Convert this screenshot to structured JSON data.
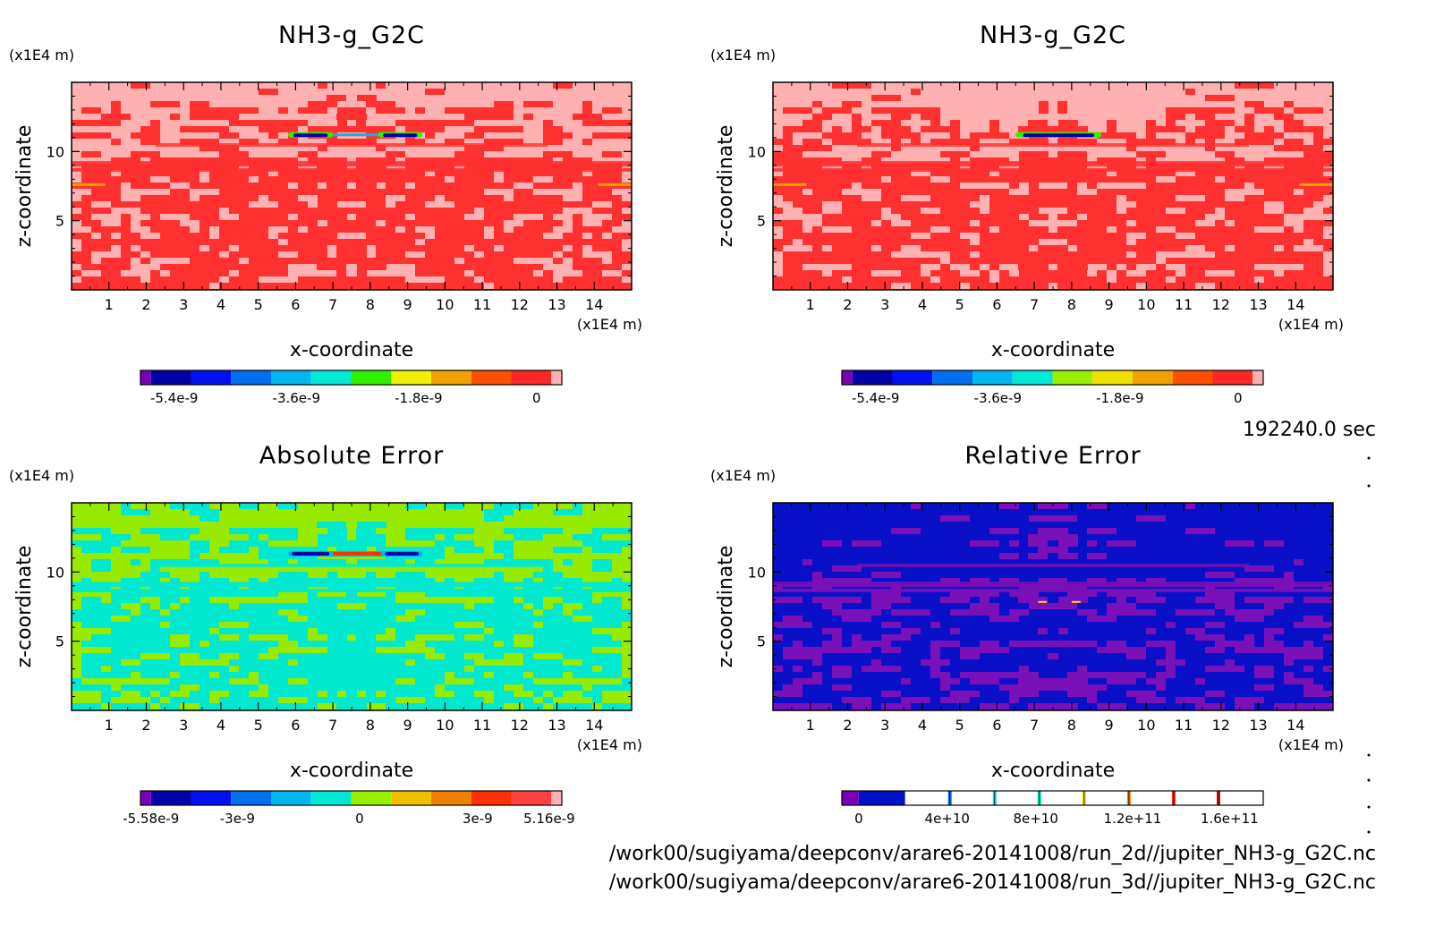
{
  "time_label": "192240.0 sec",
  "files": [
    "/work00/sugiyama/deepconv/arare6-20141008/run_2d//jupiter_NH3-g_G2C.nc",
    "/work00/sugiyama/deepconv/arare6-20141008/run_3d//jupiter_NH3-g_G2C.nc"
  ],
  "chart_data": [
    {
      "type": "heatmap",
      "title": "NH3-g_G2C",
      "xlabel": "x-coordinate",
      "ylabel": "z-coordinate",
      "x_unit": "(x1E4 m)",
      "y_unit": "(x1E4 m)",
      "xlim": [
        0,
        15
      ],
      "ylim": [
        0,
        15
      ],
      "x_ticks": [
        "1",
        "2",
        "3",
        "4",
        "5",
        "6",
        "7",
        "8",
        "9",
        "10",
        "11",
        "12",
        "13",
        "14"
      ],
      "y_ticks": [
        "5",
        "10"
      ],
      "colorbar": {
        "colors": [
          "#7a00b8",
          "#0000a8",
          "#0010f0",
          "#0070f0",
          "#00b8f0",
          "#00e8d8",
          "#30f000",
          "#f0f000",
          "#f0a000",
          "#ff5000",
          "#ff2828",
          "#ffb0b0"
        ],
        "labels": [
          "-5.4e-9",
          "-3.6e-9",
          "-1.8e-9",
          "0"
        ]
      }
    },
    {
      "type": "heatmap",
      "title": "NH3-g_G2C",
      "xlabel": "x-coordinate",
      "ylabel": "z-coordinate",
      "x_unit": "(x1E4 m)",
      "y_unit": "(x1E4 m)",
      "xlim": [
        0,
        15
      ],
      "ylim": [
        0,
        15
      ],
      "x_ticks": [
        "1",
        "2",
        "3",
        "4",
        "5",
        "6",
        "7",
        "8",
        "9",
        "10",
        "11",
        "12",
        "13",
        "14"
      ],
      "y_ticks": [
        "5",
        "10"
      ],
      "colorbar": {
        "colors": [
          "#7a00b8",
          "#0000a8",
          "#0010f0",
          "#0070f0",
          "#00b8f0",
          "#00e8d8",
          "#98f000",
          "#f0e000",
          "#f0a000",
          "#ff5000",
          "#ff2828",
          "#ffb0b0"
        ],
        "labels": [
          "-5.4e-9",
          "-3.6e-9",
          "-1.8e-9",
          "0"
        ]
      }
    },
    {
      "type": "heatmap",
      "title": "Absolute Error",
      "xlabel": "x-coordinate",
      "ylabel": "z-coordinate",
      "x_unit": "(x1E4 m)",
      "y_unit": "(x1E4 m)",
      "xlim": [
        0,
        15
      ],
      "ylim": [
        0,
        15
      ],
      "x_ticks": [
        "1",
        "2",
        "3",
        "4",
        "5",
        "6",
        "7",
        "8",
        "9",
        "10",
        "11",
        "12",
        "13",
        "14"
      ],
      "y_ticks": [
        "5",
        "10"
      ],
      "colorbar": {
        "colors": [
          "#7a00b8",
          "#0000a8",
          "#0010f0",
          "#0070f0",
          "#00b8f0",
          "#00e8d8",
          "#98f000",
          "#f0c000",
          "#f08000",
          "#ff3000",
          "#ff4040",
          "#ffb0b0"
        ],
        "labels": [
          "-5.58e-9",
          "-3e-9",
          "0",
          "3e-9",
          "5.16e-9"
        ]
      }
    },
    {
      "type": "heatmap",
      "title": "Relative Error",
      "xlabel": "x-coordinate",
      "ylabel": "z-coordinate",
      "x_unit": "(x1E4 m)",
      "y_unit": "(x1E4 m)",
      "xlim": [
        0,
        15
      ],
      "ylim": [
        0,
        15
      ],
      "x_ticks": [
        "1",
        "2",
        "3",
        "4",
        "5",
        "6",
        "7",
        "8",
        "9",
        "10",
        "11",
        "12",
        "13",
        "14"
      ],
      "y_ticks": [
        "5",
        "10"
      ],
      "colorbar": {
        "colors": [
          "#7a00b8",
          "#0010c8"
        ],
        "marker_colors": [
          "#0070f0",
          "#00e8f0",
          "#00e8c0",
          "#f0e000",
          "#f08000",
          "#ff2020",
          "#ff0000"
        ],
        "labels": [
          "0",
          "4e+10",
          "8e+10",
          "1.2e+11",
          "1.6e+11"
        ]
      }
    }
  ]
}
